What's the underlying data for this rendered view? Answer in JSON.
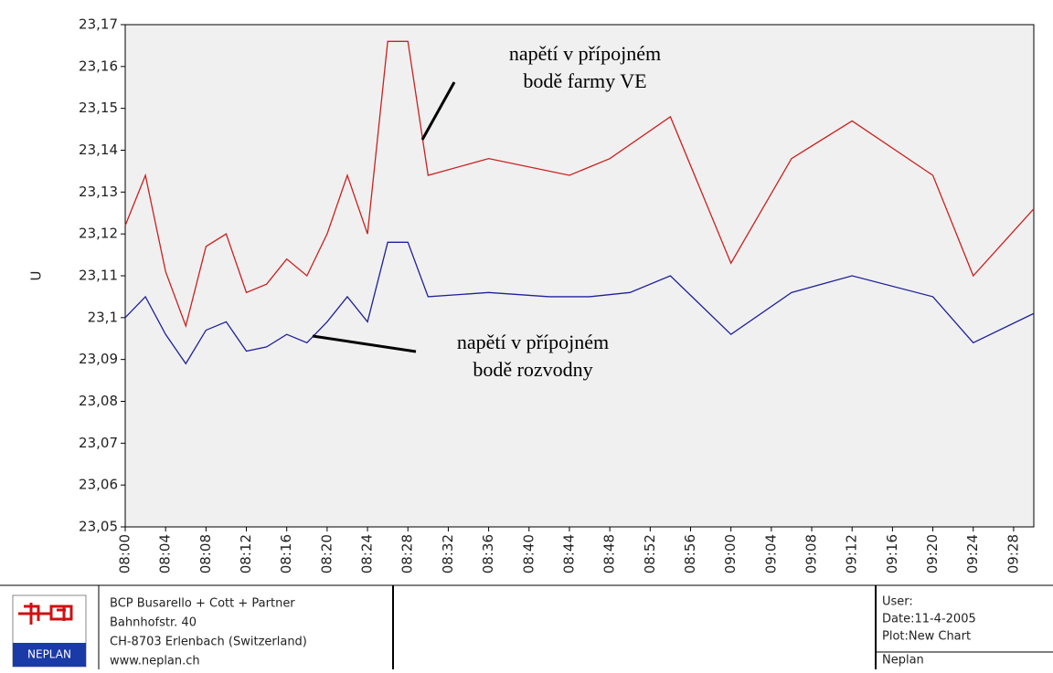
{
  "chart_data": {
    "type": "line",
    "ylabel": "U",
    "xlim": [
      480,
      570
    ],
    "xticks": [
      {
        "value": 480,
        "label": "08:00"
      },
      {
        "value": 484,
        "label": "08:04"
      },
      {
        "value": 488,
        "label": "08:08"
      },
      {
        "value": 492,
        "label": "08:12"
      },
      {
        "value": 496,
        "label": "08:16"
      },
      {
        "value": 500,
        "label": "08:20"
      },
      {
        "value": 504,
        "label": "08:24"
      },
      {
        "value": 508,
        "label": "08:28"
      },
      {
        "value": 512,
        "label": "08:32"
      },
      {
        "value": 516,
        "label": "08:36"
      },
      {
        "value": 520,
        "label": "08:40"
      },
      {
        "value": 524,
        "label": "08:44"
      },
      {
        "value": 528,
        "label": "08:48"
      },
      {
        "value": 532,
        "label": "08:52"
      },
      {
        "value": 536,
        "label": "08:56"
      },
      {
        "value": 540,
        "label": "09:00"
      },
      {
        "value": 544,
        "label": "09:04"
      },
      {
        "value": 548,
        "label": "09:08"
      },
      {
        "value": 552,
        "label": "09:12"
      },
      {
        "value": 556,
        "label": "09:16"
      },
      {
        "value": 560,
        "label": "09:20"
      },
      {
        "value": 564,
        "label": "09:24"
      },
      {
        "value": 568,
        "label": "09:28"
      }
    ],
    "ylim": [
      23.05,
      23.17
    ],
    "yticks": [
      {
        "value": 23.05,
        "label": "23,05"
      },
      {
        "value": 23.06,
        "label": "23,06"
      },
      {
        "value": 23.07,
        "label": "23,07"
      },
      {
        "value": 23.08,
        "label": "23,08"
      },
      {
        "value": 23.09,
        "label": "23,09"
      },
      {
        "value": 23.1,
        "label": "23,1"
      },
      {
        "value": 23.11,
        "label": "23,11"
      },
      {
        "value": 23.12,
        "label": "23,12"
      },
      {
        "value": 23.13,
        "label": "23,13"
      },
      {
        "value": 23.14,
        "label": "23,14"
      },
      {
        "value": 23.15,
        "label": "23,15"
      },
      {
        "value": 23.16,
        "label": "23,16"
      },
      {
        "value": 23.17,
        "label": "23,17"
      }
    ],
    "series": [
      {
        "color": "#cc2020",
        "x": [
          480,
          482,
          484,
          486,
          488,
          490,
          492,
          494,
          496,
          498,
          500,
          502,
          504,
          506,
          508,
          510,
          516,
          524,
          528,
          534,
          540,
          546,
          552,
          560,
          564,
          570
        ],
        "values": [
          23.122,
          23.134,
          23.111,
          23.098,
          23.117,
          23.12,
          23.106,
          23.108,
          23.114,
          23.11,
          23.12,
          23.134,
          23.12,
          23.166,
          23.166,
          23.134,
          23.138,
          23.134,
          23.138,
          23.148,
          23.113,
          23.138,
          23.147,
          23.134,
          23.11,
          23.126
        ]
      },
      {
        "color": "#20209a",
        "x": [
          480,
          482,
          484,
          486,
          488,
          490,
          492,
          494,
          496,
          498,
          500,
          502,
          504,
          506,
          508,
          510,
          516,
          522,
          526,
          530,
          534,
          540,
          546,
          552,
          560,
          564,
          570
        ],
        "values": [
          23.1,
          23.105,
          23.096,
          23.089,
          23.097,
          23.099,
          23.092,
          23.093,
          23.096,
          23.094,
          23.099,
          23.105,
          23.099,
          23.118,
          23.118,
          23.105,
          23.106,
          23.105,
          23.105,
          23.106,
          23.11,
          23.096,
          23.106,
          23.11,
          23.105,
          23.094,
          23.101
        ]
      }
    ],
    "annotations": [
      {
        "text": [
          "napětí v přípojném",
          "bodě farmy VE"
        ]
      },
      {
        "text": [
          "napětí v přípojném",
          "bodě rozvodny"
        ]
      }
    ]
  },
  "footer": {
    "logo": "NEPLAN",
    "company": [
      "BCP Busarello + Cott + Partner",
      "Bahnhofstr. 40",
      "CH-8703 Erlenbach (Switzerland)",
      "www.neplan.ch"
    ],
    "info": [
      "User:",
      "Date:11-4-2005",
      "Plot:New Chart",
      "Neplan"
    ]
  }
}
